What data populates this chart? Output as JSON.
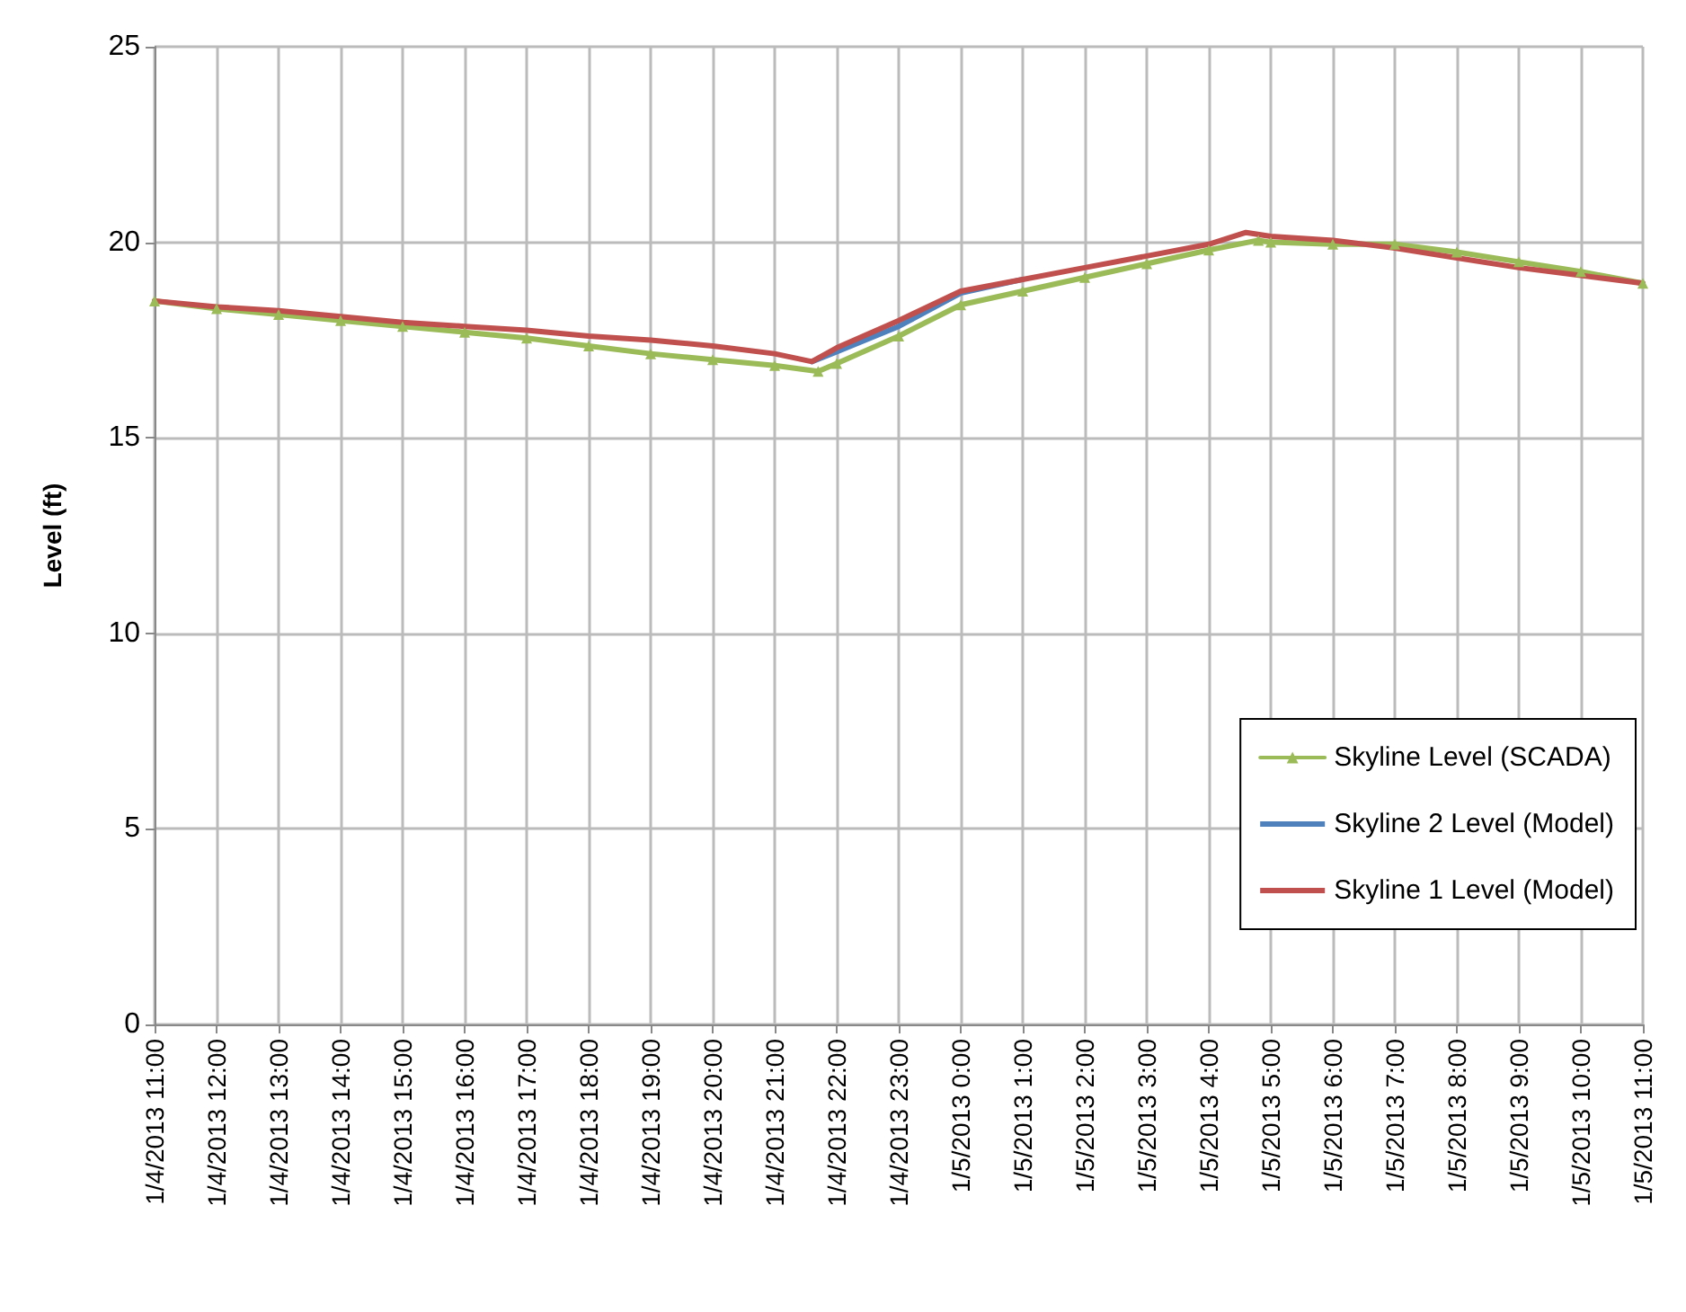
{
  "chart_data": {
    "type": "line",
    "ylabel": "Level (ft)",
    "xlim": [
      "2013-01-04T11:00",
      "2013-01-05T11:00"
    ],
    "ylim": [
      0,
      25
    ],
    "yticks": [
      0,
      5,
      10,
      15,
      20,
      25
    ],
    "xticks": [
      {
        "value": "2013-01-04T11:00",
        "label": "1/4/2013 11:00"
      },
      {
        "value": "2013-01-04T12:00",
        "label": "1/4/2013 12:00"
      },
      {
        "value": "2013-01-04T13:00",
        "label": "1/4/2013 13:00"
      },
      {
        "value": "2013-01-04T14:00",
        "label": "1/4/2013 14:00"
      },
      {
        "value": "2013-01-04T15:00",
        "label": "1/4/2013 15:00"
      },
      {
        "value": "2013-01-04T16:00",
        "label": "1/4/2013 16:00"
      },
      {
        "value": "2013-01-04T17:00",
        "label": "1/4/2013 17:00"
      },
      {
        "value": "2013-01-04T18:00",
        "label": "1/4/2013 18:00"
      },
      {
        "value": "2013-01-04T19:00",
        "label": "1/4/2013 19:00"
      },
      {
        "value": "2013-01-04T20:00",
        "label": "1/4/2013 20:00"
      },
      {
        "value": "2013-01-04T21:00",
        "label": "1/4/2013 21:00"
      },
      {
        "value": "2013-01-04T22:00",
        "label": "1/4/2013 22:00"
      },
      {
        "value": "2013-01-04T23:00",
        "label": "1/4/2013 23:00"
      },
      {
        "value": "2013-01-05T00:00",
        "label": "1/5/2013 0:00"
      },
      {
        "value": "2013-01-05T01:00",
        "label": "1/5/2013 1:00"
      },
      {
        "value": "2013-01-05T02:00",
        "label": "1/5/2013 2:00"
      },
      {
        "value": "2013-01-05T03:00",
        "label": "1/5/2013 3:00"
      },
      {
        "value": "2013-01-05T04:00",
        "label": "1/5/2013 4:00"
      },
      {
        "value": "2013-01-05T05:00",
        "label": "1/5/2013 5:00"
      },
      {
        "value": "2013-01-05T06:00",
        "label": "1/5/2013 6:00"
      },
      {
        "value": "2013-01-05T07:00",
        "label": "1/5/2013 7:00"
      },
      {
        "value": "2013-01-05T08:00",
        "label": "1/5/2013 8:00"
      },
      {
        "value": "2013-01-05T09:00",
        "label": "1/5/2013 9:00"
      },
      {
        "value": "2013-01-05T10:00",
        "label": "1/5/2013 10:00"
      },
      {
        "value": "2013-01-05T11:00",
        "label": "1/5/2013 11:00"
      }
    ],
    "grid": true,
    "legend": "bottom right",
    "line_style": "solid",
    "series": [
      {
        "name": "Skyline Level (SCADA)",
        "color": "#9bbb59",
        "marker": "triangle",
        "x": [
          "2013-01-04T11:00",
          "2013-01-04T12:00",
          "2013-01-04T13:00",
          "2013-01-04T14:00",
          "2013-01-04T15:00",
          "2013-01-04T16:00",
          "2013-01-04T17:00",
          "2013-01-04T18:00",
          "2013-01-04T19:00",
          "2013-01-04T20:00",
          "2013-01-04T21:00",
          "2013-01-04T21:42",
          "2013-01-04T22:00",
          "2013-01-04T23:00",
          "2013-01-05T00:00",
          "2013-01-05T01:00",
          "2013-01-05T02:00",
          "2013-01-05T03:00",
          "2013-01-05T04:00",
          "2013-01-05T04:48",
          "2013-01-05T05:00",
          "2013-01-05T06:00",
          "2013-01-05T07:00",
          "2013-01-05T08:00",
          "2013-01-05T09:00",
          "2013-01-05T10:00",
          "2013-01-05T11:00"
        ],
        "values": [
          18.5,
          18.3,
          18.15,
          18.0,
          17.85,
          17.7,
          17.55,
          17.35,
          17.15,
          17.0,
          16.85,
          16.7,
          16.9,
          17.6,
          18.4,
          18.75,
          19.1,
          19.45,
          19.8,
          20.05,
          20.0,
          19.95,
          19.95,
          19.75,
          19.5,
          19.25,
          18.95
        ]
      },
      {
        "name": "Skyline 2 Level (Model)",
        "color": "#4f81bd",
        "marker": "none",
        "x": [
          "2013-01-04T21:36",
          "2013-01-04T22:00",
          "2013-01-04T23:00",
          "2013-01-05T00:00",
          "2013-01-05T01:00"
        ],
        "values": [
          16.95,
          17.2,
          17.85,
          18.7,
          19.05
        ]
      },
      {
        "name": "Skyline 1 Level (Model)",
        "color": "#c0504d",
        "marker": "none",
        "x": [
          "2013-01-04T11:00",
          "2013-01-04T12:00",
          "2013-01-04T13:00",
          "2013-01-04T14:00",
          "2013-01-04T15:00",
          "2013-01-04T16:00",
          "2013-01-04T17:00",
          "2013-01-04T18:00",
          "2013-01-04T19:00",
          "2013-01-04T20:00",
          "2013-01-04T21:00",
          "2013-01-04T21:36",
          "2013-01-04T22:00",
          "2013-01-04T23:00",
          "2013-01-05T00:00",
          "2013-01-05T01:00",
          "2013-01-05T02:00",
          "2013-01-05T03:00",
          "2013-01-05T04:00",
          "2013-01-05T04:36",
          "2013-01-05T05:00",
          "2013-01-05T06:00",
          "2013-01-05T07:00",
          "2013-01-05T08:00",
          "2013-01-05T09:00",
          "2013-01-05T10:00",
          "2013-01-05T11:00"
        ],
        "values": [
          18.5,
          18.35,
          18.25,
          18.1,
          17.95,
          17.85,
          17.75,
          17.6,
          17.5,
          17.35,
          17.15,
          16.95,
          17.3,
          18.0,
          18.75,
          19.05,
          19.35,
          19.65,
          19.95,
          20.25,
          20.15,
          20.05,
          19.85,
          19.6,
          19.35,
          19.15,
          18.95
        ]
      }
    ]
  }
}
